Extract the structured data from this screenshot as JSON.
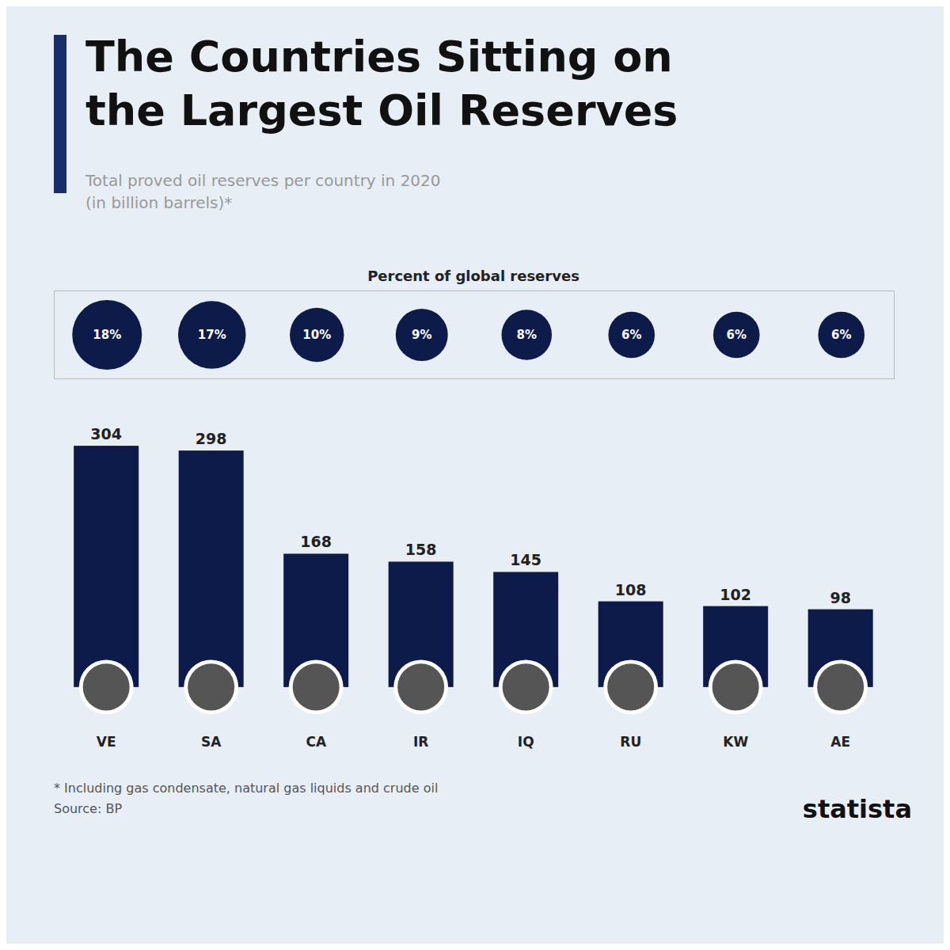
{
  "chart_data": [
    {
      "type": "bar",
      "title": [
        "The Countries Sitting on",
        "the Largest Oil Reserves"
      ],
      "subtitle": [
        "Total proved oil reserves per country in 2020",
        "(in billion barrels)*"
      ],
      "categories": [
        "VE",
        "SA",
        "CA",
        "IR",
        "IQ",
        "RU",
        "KW",
        "AE"
      ],
      "values": [
        304,
        298,
        168,
        158,
        145,
        108,
        102,
        98
      ],
      "color": "#0d1b4b",
      "ylim": [
        -55,
        340
      ],
      "data_labels": true,
      "tick_labels": "x",
      "grid": false,
      "annotations": [
        "* Including gas condensate, natural gas liquids and crude oil",
        "Source: BP",
        "statista"
      ]
    },
    {
      "type": "bubble",
      "title": "Percent of global reserves",
      "values": [
        18,
        17,
        10,
        9,
        8,
        6,
        6,
        6
      ],
      "value_labels": [
        "18%",
        "17%",
        "10%",
        "9%",
        "8%",
        "6%",
        "6%",
        "6%"
      ],
      "color": "#0d1b4b",
      "data_labels": true,
      "tick_labels": false,
      "grid": false
    }
  ]
}
